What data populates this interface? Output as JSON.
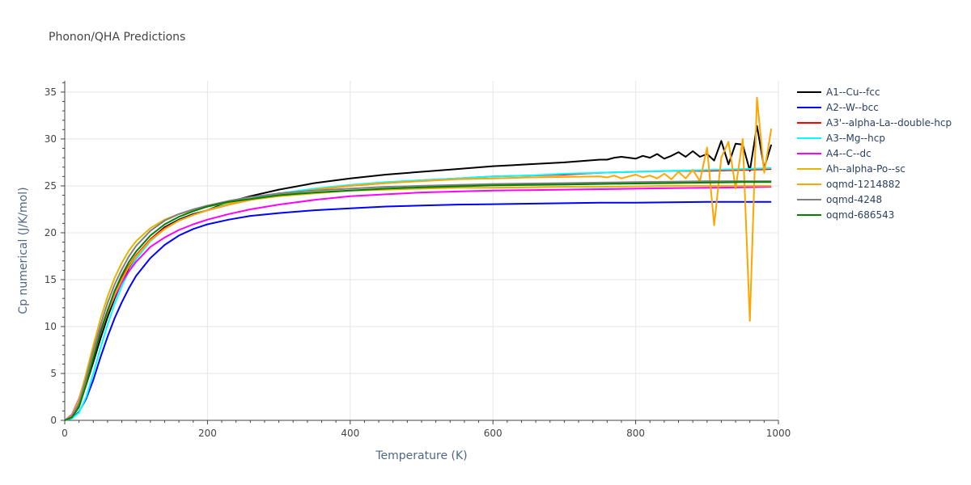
{
  "chart_data": {
    "type": "line",
    "title": "Phonon/QHA Predictions",
    "xlabel": "Temperature (K)",
    "ylabel": "Cp numerical (J/K/mol)",
    "xlim": [
      0,
      1000
    ],
    "ylim": [
      0,
      36.2
    ],
    "x_ticks": [
      0,
      200,
      400,
      600,
      800,
      1000
    ],
    "y_ticks": [
      0,
      5,
      10,
      15,
      20,
      25,
      30,
      35
    ],
    "grid": true,
    "legend_position": "right",
    "x": [
      0,
      10,
      20,
      30,
      40,
      50,
      60,
      70,
      80,
      90,
      100,
      120,
      140,
      160,
      180,
      200,
      230,
      260,
      300,
      350,
      400,
      450,
      500,
      550,
      600,
      650,
      700,
      750,
      800,
      850,
      900,
      950,
      990
    ],
    "series": [
      {
        "name": "A1--Cu--fcc",
        "color": "#000000",
        "values": [
          0,
          0.4,
          1.6,
          3.8,
          6.2,
          8.7,
          11.0,
          13.0,
          14.8,
          16.3,
          17.5,
          19.3,
          20.6,
          21.4,
          22.0,
          22.4,
          23.3,
          23.9,
          24.6,
          25.3,
          25.8,
          26.2,
          26.5,
          26.8,
          27.1,
          27.3,
          27.5,
          27.8,
          28.0,
          28.3,
          28.8,
          29.4,
          29.4
        ],
        "noisy_tail": [
          [
            760,
            27.8
          ],
          [
            770,
            28.0
          ],
          [
            780,
            28.1
          ],
          [
            790,
            28.0
          ],
          [
            800,
            27.9
          ],
          [
            810,
            28.2
          ],
          [
            820,
            28.0
          ],
          [
            830,
            28.4
          ],
          [
            840,
            27.9
          ],
          [
            850,
            28.2
          ],
          [
            860,
            28.6
          ],
          [
            870,
            28.1
          ],
          [
            880,
            28.7
          ],
          [
            890,
            28.1
          ],
          [
            900,
            28.4
          ],
          [
            910,
            27.7
          ],
          [
            920,
            29.8
          ],
          [
            930,
            27.3
          ],
          [
            940,
            29.5
          ],
          [
            950,
            29.4
          ],
          [
            960,
            26.6
          ],
          [
            970,
            31.4
          ],
          [
            980,
            26.9
          ],
          [
            990,
            29.4
          ]
        ]
      },
      {
        "name": "A2--W--bcc",
        "color": "#0000ff",
        "values": [
          0,
          0.2,
          0.9,
          2.3,
          4.3,
          6.7,
          8.9,
          10.9,
          12.6,
          14.1,
          15.4,
          17.3,
          18.7,
          19.7,
          20.4,
          20.9,
          21.4,
          21.8,
          22.1,
          22.4,
          22.6,
          22.8,
          22.9,
          23.0,
          23.05,
          23.1,
          23.15,
          23.2,
          23.2,
          23.25,
          23.3,
          23.3,
          23.3
        ]
      },
      {
        "name": "A3'--alpha-La--double-hcp",
        "color": "#ff0000",
        "values": [
          0,
          0.5,
          2.0,
          4.5,
          7.0,
          9.5,
          11.7,
          13.6,
          15.2,
          16.5,
          17.6,
          19.3,
          20.5,
          21.3,
          21.9,
          22.4,
          23.0,
          23.5,
          24.0,
          24.6,
          25.0,
          25.3,
          25.6,
          25.8,
          26.0,
          26.1,
          26.2,
          26.4,
          26.5,
          26.6,
          26.6,
          26.7,
          26.8
        ]
      },
      {
        "name": "A3--Mg--hcp",
        "color": "#00ffff",
        "values": [
          0,
          0.2,
          0.8,
          2.5,
          5.0,
          7.7,
          10.2,
          12.4,
          14.3,
          15.9,
          17.2,
          19.1,
          20.4,
          21.3,
          21.9,
          22.4,
          23.1,
          23.6,
          24.2,
          24.7,
          25.1,
          25.4,
          25.6,
          25.8,
          26.0,
          26.1,
          26.3,
          26.4,
          26.5,
          26.6,
          26.7,
          26.8,
          26.9
        ]
      },
      {
        "name": "A4--C--dc",
        "color": "#ff00ff",
        "values": [
          0,
          0.6,
          2.3,
          4.8,
          7.2,
          9.5,
          11.5,
          13.2,
          14.7,
          15.9,
          16.9,
          18.5,
          19.5,
          20.3,
          20.9,
          21.4,
          22.0,
          22.5,
          23.0,
          23.5,
          23.9,
          24.1,
          24.3,
          24.4,
          24.5,
          24.55,
          24.6,
          24.65,
          24.7,
          24.75,
          24.8,
          24.85,
          24.9
        ]
      },
      {
        "name": "Ah--alpha-Po--sc",
        "color": "#e5b400",
        "values": [
          0,
          0.5,
          2.2,
          5.0,
          8.0,
          10.8,
          13.2,
          15.2,
          16.8,
          18.1,
          19.1,
          20.5,
          21.4,
          22.0,
          22.4,
          22.8,
          23.2,
          23.5,
          23.9,
          24.2,
          24.5,
          24.6,
          24.7,
          24.8,
          24.8,
          24.85,
          24.9,
          24.9,
          24.95,
          25.0,
          25.0,
          25.0,
          25.0
        ]
      },
      {
        "name": "oqmd-1214882",
        "color": "#ffa500",
        "values": [
          0,
          0.4,
          1.8,
          4.2,
          6.8,
          9.3,
          11.5,
          13.4,
          15.0,
          16.4,
          17.5,
          19.2,
          20.4,
          21.3,
          21.9,
          22.4,
          23.0,
          23.5,
          24.0,
          24.6,
          25.0,
          25.3,
          25.5,
          25.7,
          25.8,
          25.9,
          25.95,
          26.0,
          26.0,
          26.1,
          26.2,
          26.3,
          31.1
        ],
        "noisy_tail": [
          [
            760,
            25.9
          ],
          [
            770,
            26.1
          ],
          [
            780,
            25.8
          ],
          [
            790,
            26.0
          ],
          [
            800,
            26.2
          ],
          [
            810,
            25.9
          ],
          [
            820,
            26.1
          ],
          [
            830,
            25.8
          ],
          [
            840,
            26.3
          ],
          [
            850,
            25.7
          ],
          [
            860,
            26.5
          ],
          [
            870,
            25.8
          ],
          [
            880,
            26.7
          ],
          [
            890,
            25.5
          ],
          [
            900,
            29.1
          ],
          [
            910,
            20.8
          ],
          [
            920,
            28.0
          ],
          [
            930,
            29.7
          ],
          [
            940,
            24.7
          ],
          [
            950,
            30.0
          ],
          [
            960,
            10.6
          ],
          [
            970,
            34.4
          ],
          [
            980,
            26.4
          ],
          [
            990,
            31.1
          ]
        ]
      },
      {
        "name": "oqmd-4248",
        "color": "#808080",
        "values": [
          0,
          0.4,
          1.8,
          4.5,
          7.4,
          10.1,
          12.5,
          14.5,
          16.1,
          17.5,
          18.6,
          20.2,
          21.3,
          22.0,
          22.5,
          22.9,
          23.4,
          23.8,
          24.2,
          24.5,
          24.7,
          24.9,
          25.0,
          25.1,
          25.2,
          25.25,
          25.3,
          25.35,
          25.4,
          25.45,
          25.5,
          25.5,
          25.5
        ]
      },
      {
        "name": "oqmd-686543",
        "color": "#008000",
        "values": [
          0,
          0.3,
          1.4,
          3.8,
          6.6,
          9.3,
          11.7,
          13.8,
          15.5,
          16.9,
          18.0,
          19.7,
          20.9,
          21.7,
          22.3,
          22.8,
          23.3,
          23.6,
          24.0,
          24.3,
          24.5,
          24.7,
          24.85,
          24.95,
          25.05,
          25.1,
          25.15,
          25.2,
          25.25,
          25.3,
          25.35,
          25.4,
          25.4
        ]
      }
    ]
  }
}
